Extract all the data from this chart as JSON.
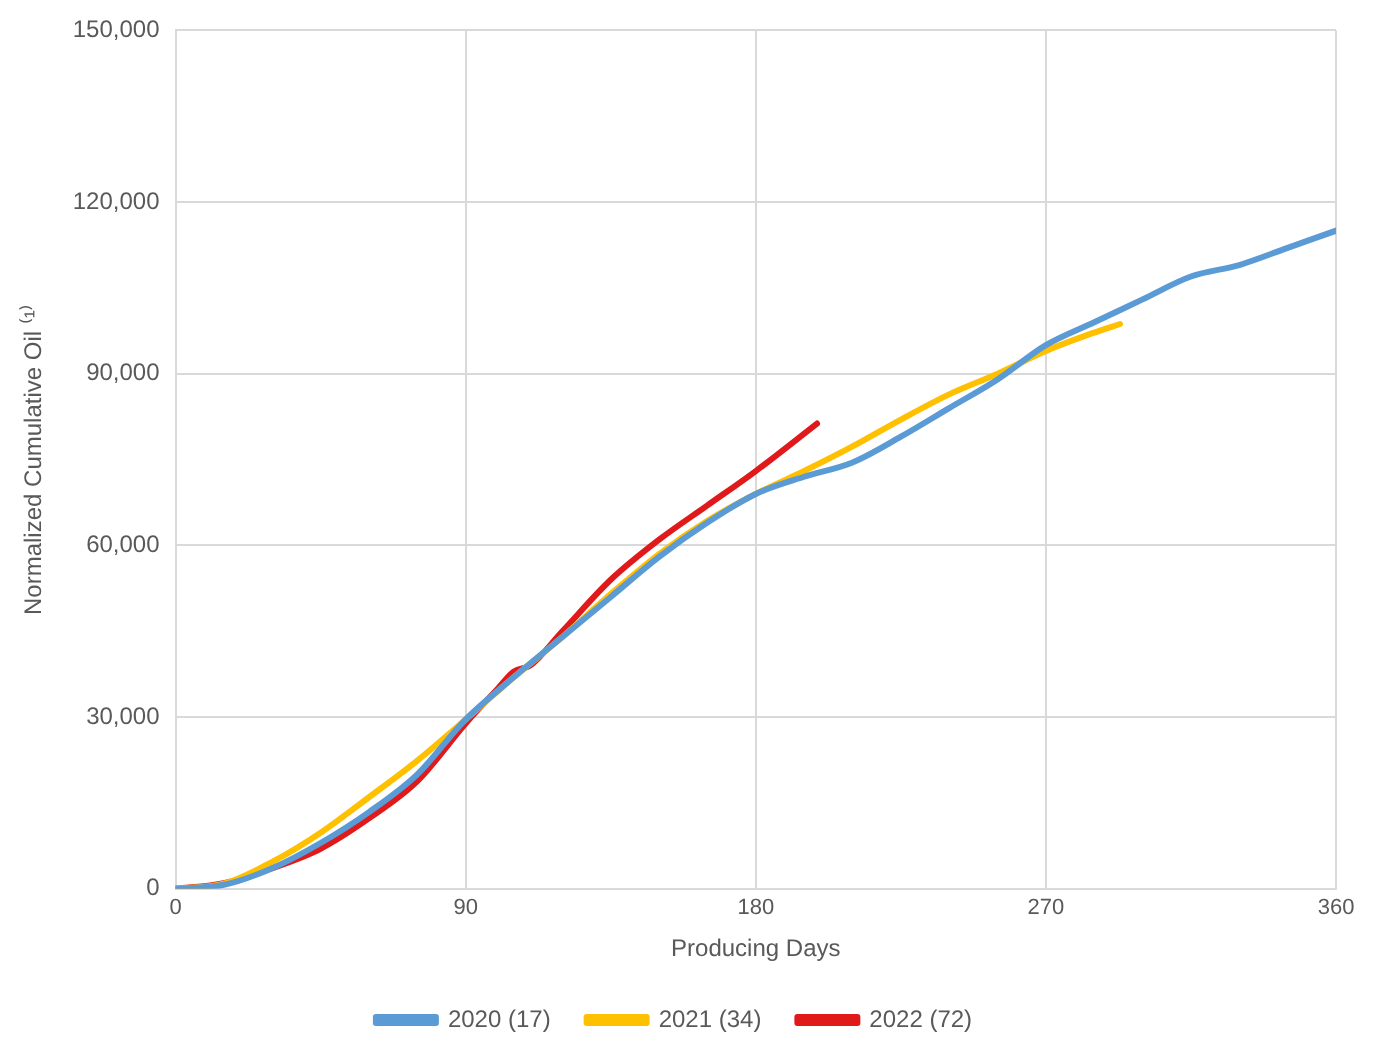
{
  "chart_data": {
    "type": "line",
    "xlabel": "Producing Days",
    "ylabel": "Normalized Cumulative Oil ⁽¹⁾",
    "xlim": [
      0,
      360
    ],
    "xticks": [
      0,
      90,
      180,
      270,
      360
    ],
    "ylim": [
      0,
      150000
    ],
    "yticks": [
      {
        "value": 0,
        "label": "0"
      },
      {
        "value": 30000,
        "label": "30,000"
      },
      {
        "value": 60000,
        "label": "60,000"
      },
      {
        "value": 90000,
        "label": "90,000"
      },
      {
        "value": 120000,
        "label": "120,000"
      },
      {
        "value": 150000,
        "label": "150,000"
      }
    ],
    "grid": true,
    "legend": "bottom",
    "marker": "none",
    "line_style": "solid",
    "series": [
      {
        "name": "2020 (17)",
        "color": "#5b9bd5",
        "x": [
          0,
          15,
          30,
          45,
          60,
          75,
          90,
          105,
          120,
          135,
          150,
          165,
          180,
          195,
          210,
          225,
          240,
          255,
          270,
          285,
          300,
          315,
          330,
          345,
          360
        ],
        "values": [
          0,
          700,
          3600,
          8000,
          13400,
          20000,
          29600,
          37000,
          44000,
          51000,
          58000,
          64000,
          69000,
          72000,
          74500,
          79000,
          84000,
          89000,
          95000,
          99000,
          103000,
          107000,
          109000,
          112000,
          115000
        ]
      },
      {
        "name": "2021 (34)",
        "color": "#ffc000",
        "x": [
          0,
          15,
          30,
          45,
          60,
          75,
          90,
          105,
          120,
          135,
          150,
          165,
          180,
          195,
          210,
          225,
          240,
          255,
          270,
          285,
          293
        ],
        "values": [
          0,
          900,
          4700,
          9800,
          16000,
          22400,
          29600,
          37000,
          44000,
          51500,
          58500,
          64300,
          69000,
          73000,
          77300,
          82000,
          86400,
          90000,
          94000,
          97200,
          98700
        ]
      },
      {
        "name": "2022 (72)",
        "color": "#e0191b",
        "x": [
          0,
          15,
          30,
          45,
          60,
          75,
          90,
          100,
          105,
          110,
          120,
          135,
          150,
          165,
          180,
          199
        ],
        "values": [
          0,
          1000,
          3600,
          7000,
          12300,
          18800,
          28900,
          35000,
          38000,
          39000,
          45000,
          54000,
          61000,
          67000,
          73000,
          81300
        ]
      }
    ]
  }
}
